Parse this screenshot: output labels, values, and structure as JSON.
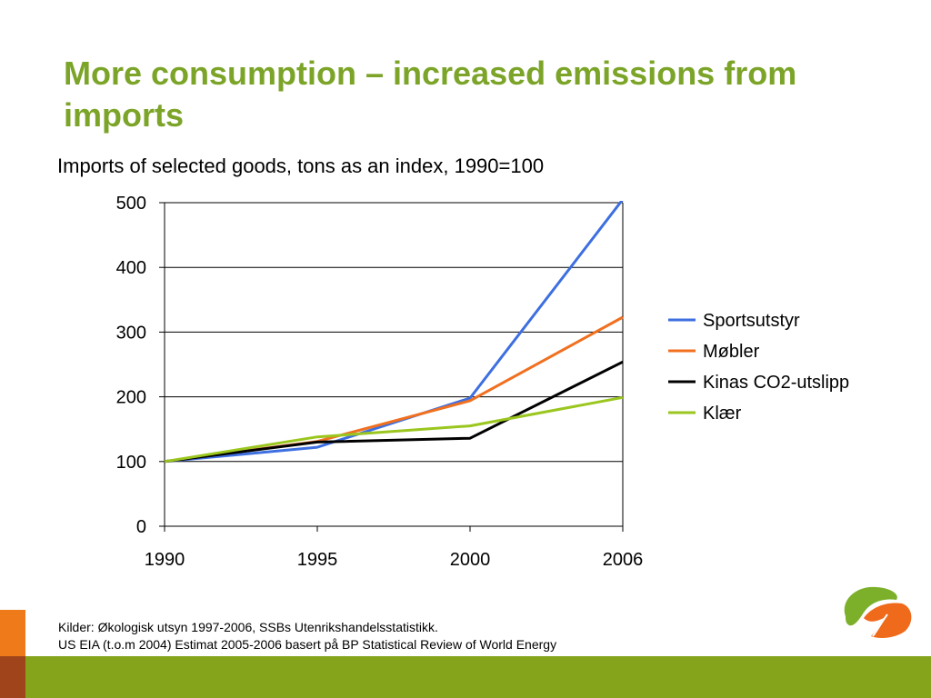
{
  "slide": {
    "title": "More consumption – increased emissions from imports",
    "sources": [
      "Kilder: Økologisk utsyn 1997-2006, SSBs Utenrikshandelsstatistikk.",
      "US EIA (t.o.m 2004) Estimat 2005-2006 basert på BP Statistical Review of World Energy"
    ]
  },
  "chart_data": {
    "type": "line",
    "title": "Imports of selected goods, tons as an index, 1990=100",
    "x": [
      "1990",
      "1995",
      "2000",
      "2006"
    ],
    "ylim": [
      0,
      500
    ],
    "yticks": [
      "0",
      "100",
      "200",
      "300",
      "400",
      "500"
    ],
    "grid": true,
    "legend_position": "right",
    "series": [
      {
        "name": "Sportsutstyr",
        "color": "#3d6fe0",
        "values": [
          100,
          122,
          198,
          505
        ]
      },
      {
        "name": "Møbler",
        "color": "#f07020",
        "values": [
          100,
          131,
          194,
          323
        ]
      },
      {
        "name": "Kinas CO2-utslipp",
        "color": "#000000",
        "values": [
          100,
          130,
          136,
          254
        ]
      },
      {
        "name": "Klær",
        "color": "#9ac61e",
        "values": [
          100,
          138,
          155,
          199
        ]
      }
    ]
  },
  "colors": {
    "title": "#7ba428",
    "band": "#86a31c",
    "corner_orange": "#ef7a1a",
    "corner_brown": "#a0451b",
    "logo_green": "#7cb02a",
    "logo_orange": "#ef6a1a"
  }
}
